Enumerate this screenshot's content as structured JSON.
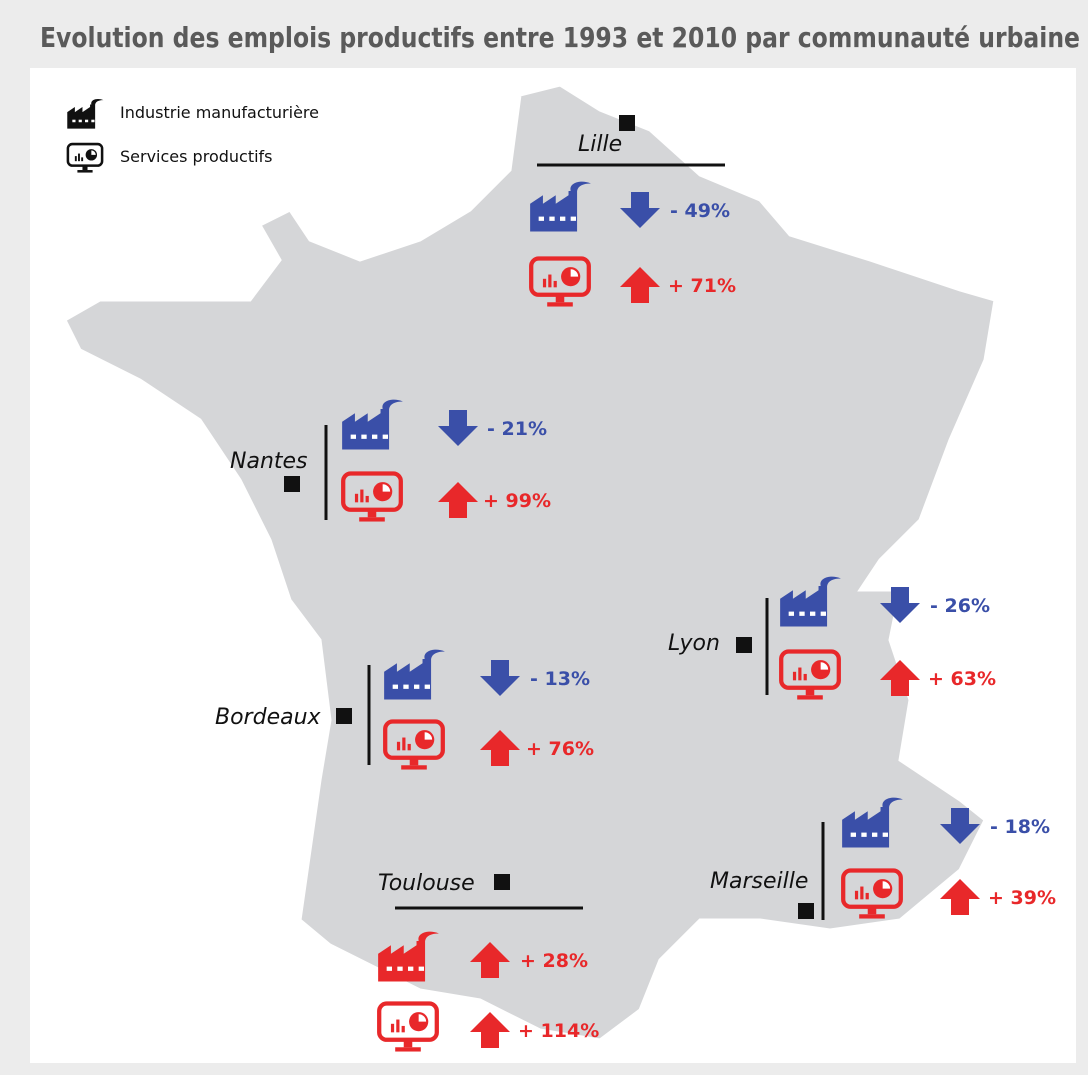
{
  "header": {
    "title": "Evolution des emplois productifs entre 1993 et 2010 par communauté urbaine"
  },
  "legend": {
    "items": [
      "Industrie manufacturière",
      "Services productifs"
    ]
  },
  "cities": [
    {
      "name": "Lille",
      "industry": {
        "value": -49,
        "label": "- 49%"
      },
      "services": {
        "value": 71,
        "label": "+ 71%"
      }
    },
    {
      "name": "Nantes",
      "industry": {
        "value": -21,
        "label": "- 21%"
      },
      "services": {
        "value": 99,
        "label": "+ 99%"
      }
    },
    {
      "name": "Bordeaux",
      "industry": {
        "value": -13,
        "label": "- 13%"
      },
      "services": {
        "value": 76,
        "label": "+ 76%"
      }
    },
    {
      "name": "Lyon",
      "industry": {
        "value": -26,
        "label": "- 26%"
      },
      "services": {
        "value": 63,
        "label": "+ 63%"
      }
    },
    {
      "name": "Marseille",
      "industry": {
        "value": -18,
        "label": "- 18%"
      },
      "services": {
        "value": 39,
        "label": "+ 39%"
      }
    },
    {
      "name": "Toulouse",
      "industry": {
        "value": 28,
        "label": "+ 28%"
      },
      "services": {
        "value": 114,
        "label": "+ 114%"
      }
    }
  ]
}
